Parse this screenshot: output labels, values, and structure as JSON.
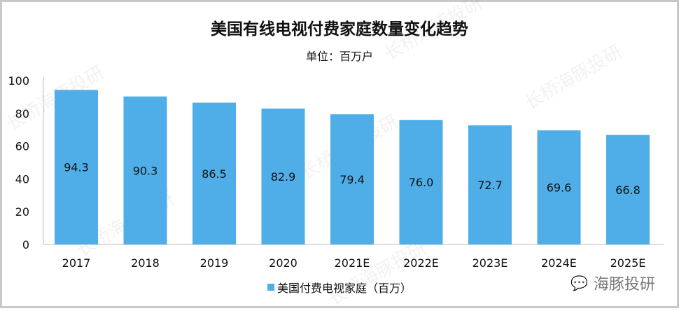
{
  "chart_data": {
    "type": "bar",
    "title": "美国有线电视付费家庭数量变化趋势",
    "subtitle": "单位：百万户",
    "categories": [
      "2017",
      "2018",
      "2019",
      "2020",
      "2021E",
      "2022E",
      "2023E",
      "2024E",
      "2025E"
    ],
    "series": [
      {
        "name": "美国付费电视家庭（百万）",
        "values": [
          94.3,
          90.3,
          86.5,
          82.9,
          79.4,
          76.0,
          72.7,
          69.6,
          66.8
        ],
        "color": "#4faee8"
      }
    ],
    "data_labels": [
      "94.3",
      "90.3",
      "86.5",
      "82.9",
      "79.4",
      "76.0",
      "72.7",
      "69.6",
      "66.8"
    ],
    "yticks": [
      "0",
      "20",
      "40",
      "60",
      "80",
      "100"
    ],
    "ylim": [
      0,
      100
    ],
    "grid": false,
    "legend_position": "bottom"
  },
  "watermark": "长桥海豚投研",
  "brand": {
    "icon": "wechat-icon",
    "text": "海豚投研"
  }
}
